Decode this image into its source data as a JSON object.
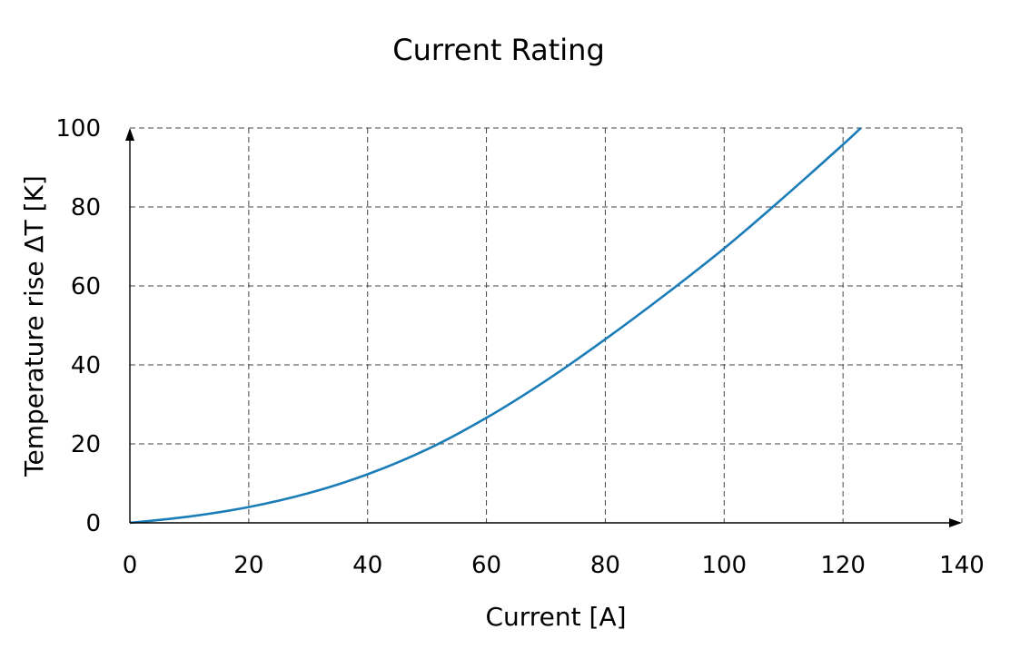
{
  "chart_data": {
    "type": "line",
    "title": "Current Rating",
    "xlabel": "Current [A]",
    "ylabel": "Temperature rise ΔT [K]",
    "xlim": [
      0,
      140
    ],
    "ylim": [
      0,
      100
    ],
    "xticks": [
      0,
      20,
      40,
      60,
      80,
      100,
      120,
      140
    ],
    "yticks": [
      0,
      20,
      40,
      60,
      80,
      100
    ],
    "grid": true,
    "series": [
      {
        "color": "#1a7db8",
        "x": [
          0,
          10,
          20,
          30,
          40,
          50,
          60,
          70,
          80,
          90,
          100,
          110,
          120,
          123
        ],
        "y": [
          0,
          1.6,
          4,
          7.5,
          12.3,
          18.6,
          26.6,
          36,
          46.5,
          57.7,
          69.5,
          82.4,
          95.8,
          100
        ]
      }
    ]
  }
}
